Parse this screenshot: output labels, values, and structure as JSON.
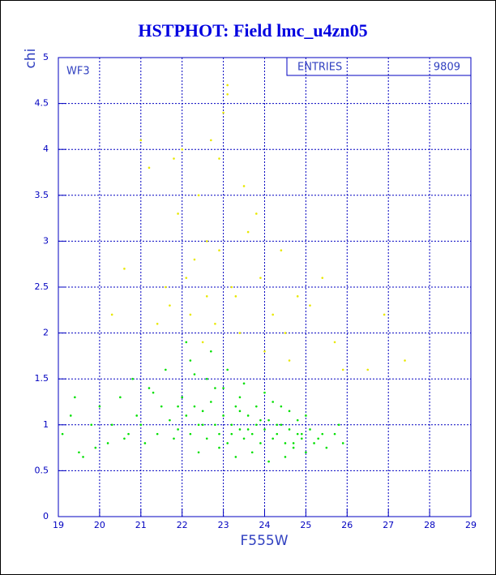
{
  "chart_data": {
    "type": "scatter",
    "title": "HSTPHOT: Field lmc_u4zn05",
    "x_label": "F555W",
    "y_label": "chi",
    "panel_label": "WF3",
    "stats_label": "ENTRIES",
    "stats_value": "9809",
    "xlim": [
      19,
      29
    ],
    "ylim": [
      0,
      5
    ],
    "xticks": [
      19,
      20,
      21,
      22,
      23,
      24,
      25,
      26,
      27,
      28,
      29
    ],
    "yticks": [
      0,
      0.5,
      1,
      1.5,
      2,
      2.5,
      3,
      3.5,
      4,
      4.5,
      5
    ],
    "grid": true,
    "series": [
      {
        "color": "#00e000",
        "x": [
          19.1,
          19.3,
          19.5,
          19.8,
          20.0,
          20.2,
          20.5,
          20.7,
          20.9,
          21.0,
          21.2,
          21.4,
          21.5,
          21.7,
          21.9,
          22.0,
          22.1,
          22.2,
          22.3,
          22.4,
          22.5,
          22.6,
          22.7,
          22.8,
          22.9,
          23.0,
          23.1,
          23.2,
          23.3,
          23.4,
          23.5,
          23.6,
          23.7,
          23.8,
          23.9,
          24.0,
          24.1,
          24.2,
          24.3,
          24.4,
          24.5,
          24.6,
          24.7,
          24.8,
          24.9,
          25.0,
          25.1,
          25.2,
          25.3,
          25.5,
          25.7,
          25.9,
          19.4,
          19.9,
          20.3,
          20.8,
          21.1,
          21.6,
          22.2,
          22.6,
          23.0,
          23.4,
          23.8,
          24.2,
          24.6,
          25.0,
          25.4,
          21.8,
          22.4,
          22.9,
          23.3,
          23.7,
          24.1,
          24.5,
          22.1,
          22.7,
          23.1,
          23.5,
          24.0,
          24.4,
          24.8,
          21.3,
          20.6,
          19.6,
          25.8,
          22.5,
          23.6,
          24.9,
          22.3,
          23.2,
          23.9,
          24.7,
          21.9,
          22.8,
          23.4,
          24.3
        ],
        "values": [
          0.9,
          1.1,
          0.7,
          1.0,
          1.2,
          0.8,
          1.3,
          0.9,
          1.1,
          1.0,
          1.4,
          0.9,
          1.2,
          1.05,
          0.95,
          1.3,
          1.1,
          0.9,
          1.2,
          1.0,
          1.15,
          0.85,
          1.25,
          1.0,
          0.9,
          1.1,
          0.8,
          1.0,
          1.2,
          0.95,
          0.85,
          1.1,
          0.9,
          1.0,
          0.8,
          0.95,
          1.05,
          0.85,
          0.9,
          1.0,
          0.8,
          0.95,
          0.75,
          0.9,
          0.85,
          0.7,
          0.95,
          0.8,
          0.85,
          0.75,
          0.9,
          0.8,
          1.3,
          0.75,
          1.0,
          1.5,
          0.8,
          1.6,
          1.7,
          1.5,
          1.4,
          1.3,
          1.2,
          1.25,
          1.15,
          1.1,
          0.9,
          0.85,
          0.7,
          0.75,
          0.65,
          0.7,
          0.6,
          0.65,
          1.9,
          1.8,
          1.6,
          1.45,
          1.35,
          1.2,
          1.05,
          1.35,
          0.85,
          0.65,
          1.0,
          1.0,
          0.95,
          0.9,
          1.55,
          0.9,
          1.05,
          0.8,
          1.2,
          1.4,
          1.15,
          1.0
        ]
      },
      {
        "color": "#e8e800",
        "x": [
          20.6,
          21.2,
          21.6,
          21.9,
          22.2,
          22.4,
          22.7,
          22.9,
          23.1,
          23.3,
          23.6,
          23.9,
          24.2,
          24.5,
          25.1,
          25.7,
          26.5,
          27.4,
          21.4,
          22.1,
          22.6,
          23.0,
          23.5,
          24.0,
          24.8,
          21.8,
          22.3,
          22.8,
          23.2,
          23.8,
          22.0,
          22.5,
          23.4,
          24.4,
          25.4,
          26.9,
          20.3,
          21.0,
          22.9,
          23.1,
          22.6,
          21.7,
          24.6,
          25.9
        ],
        "values": [
          2.7,
          3.8,
          2.5,
          3.3,
          2.2,
          3.5,
          4.1,
          2.9,
          4.7,
          2.4,
          3.1,
          2.6,
          2.2,
          2.0,
          2.3,
          1.9,
          1.6,
          1.7,
          2.1,
          2.6,
          3.0,
          4.4,
          3.6,
          1.8,
          2.4,
          3.9,
          2.8,
          2.1,
          2.5,
          3.3,
          4.0,
          1.9,
          2.0,
          2.9,
          2.6,
          2.2,
          2.2,
          4.1,
          3.9,
          4.6,
          2.4,
          2.3,
          1.7,
          1.6
        ]
      }
    ]
  }
}
